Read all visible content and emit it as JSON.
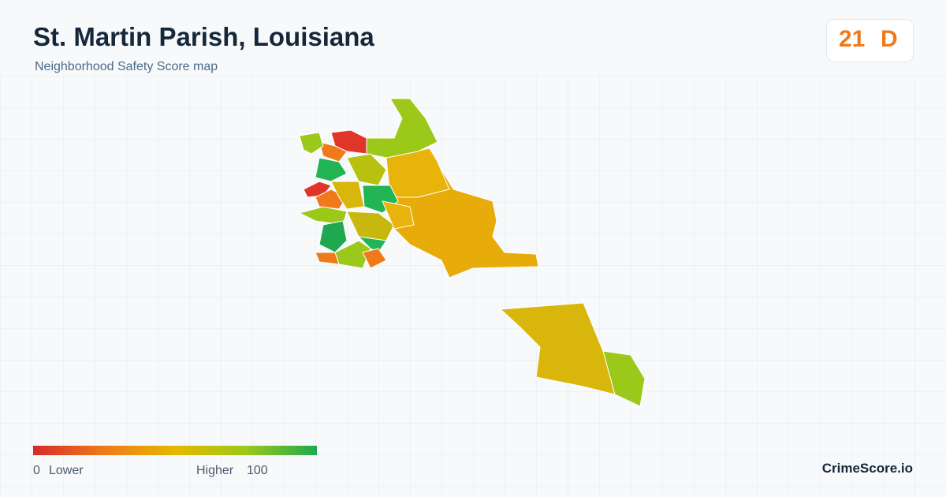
{
  "header": {
    "title": "St. Martin Parish, Louisiana",
    "subtitle": "Neighborhood Safety Score map"
  },
  "score": {
    "value": "21",
    "grade": "D"
  },
  "legend": {
    "min": "0",
    "min_label": "Lower",
    "max_label": "Higher",
    "max": "100"
  },
  "brand": "CrimeScore.io"
}
